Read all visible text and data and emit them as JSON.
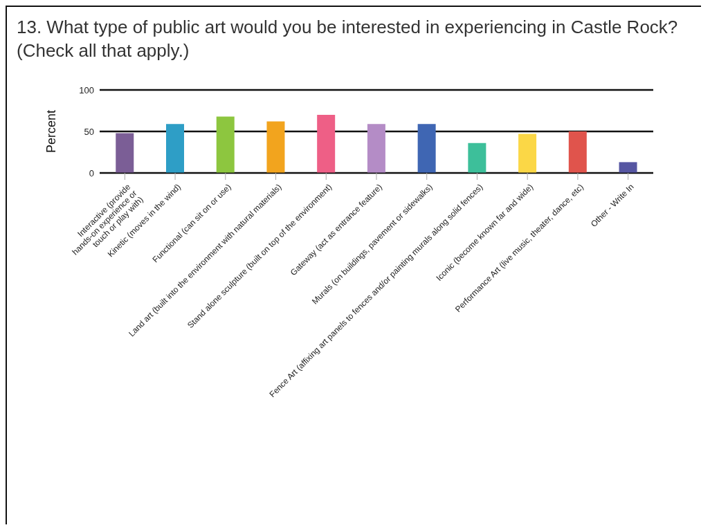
{
  "chart_data": {
    "type": "bar",
    "title": "13. What type of public art would you be interested in experiencing in Castle Rock? (Check all that apply.)",
    "ylabel": "Percent",
    "categories": [
      "Interactive (provide\nhands-on experience or\ntouch or play with)",
      "Kinetic (moves in the wind)",
      "Functional (can sit on or use)",
      "Land art (built into the environment with natural materials)",
      "Stand alone sculpture (built on top of the environment)",
      "Gateway (act as entrance feature)",
      "Murals (on buildings, pavement or sidewalks)",
      "Fence Art (affixing art panels to fences and/or painting murals along solid fences)",
      "Iconic (become known far and wide)",
      "Performance Art (live music, theater, dance, etc)",
      "Other - Write In"
    ],
    "values": [
      48,
      59,
      68,
      62,
      70,
      59,
      59,
      36,
      47,
      50,
      13
    ],
    "colors": [
      "#7b5e96",
      "#2e9ec6",
      "#8dc63f",
      "#f2a41e",
      "#ee5f86",
      "#b48cc6",
      "#3f66b3",
      "#3dbf9a",
      "#fbd746",
      "#e0544c",
      "#5656a2"
    ],
    "ylim": [
      0,
      100
    ],
    "yticks": [
      0,
      50,
      100
    ],
    "grid": "y",
    "legend": false
  }
}
